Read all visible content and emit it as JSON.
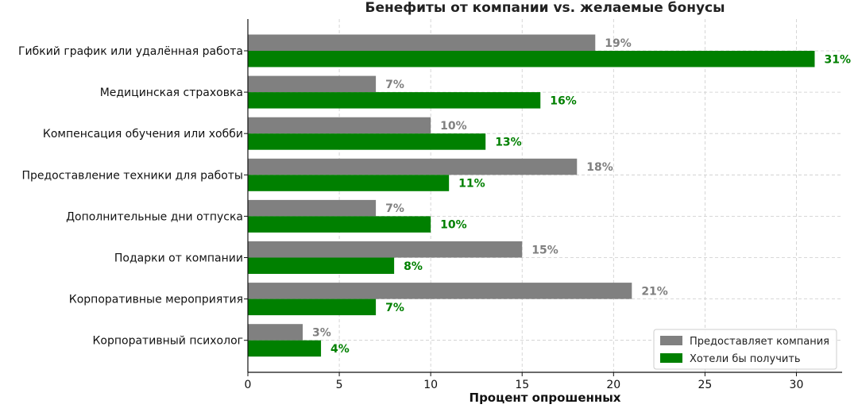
{
  "chart_data": {
    "type": "bar",
    "orientation": "horizontal",
    "title": "Бенефиты от компании vs. желаемые бонусы",
    "xlabel": "Процент опрошенных",
    "ylabel": "",
    "xlim": [
      0,
      32.5
    ],
    "xticks": [
      0,
      5,
      10,
      15,
      20,
      25,
      30
    ],
    "grid": true,
    "legend_position": "bottom-right",
    "categories": [
      "Гибкий график или удалённая работа",
      "Медицинская страховка",
      "Компенсация обучения или хобби",
      "Предоставление техники для работы",
      "Дополнительные дни отпуска",
      "Подарки от компании",
      "Корпоративные мероприятия",
      "Корпоративный психолог"
    ],
    "series": [
      {
        "name": "Предоставляет компания",
        "color": "#808080",
        "values": [
          19,
          7,
          10,
          18,
          7,
          15,
          21,
          3
        ],
        "labels": [
          "19%",
          "7%",
          "10%",
          "18%",
          "7%",
          "15%",
          "21%",
          "3%"
        ]
      },
      {
        "name": "Хотели бы получить",
        "color": "#008000",
        "values": [
          31,
          16,
          13,
          11,
          10,
          8,
          7,
          4
        ],
        "labels": [
          "31%",
          "16%",
          "13%",
          "11%",
          "10%",
          "8%",
          "7%",
          "4%"
        ]
      }
    ]
  }
}
